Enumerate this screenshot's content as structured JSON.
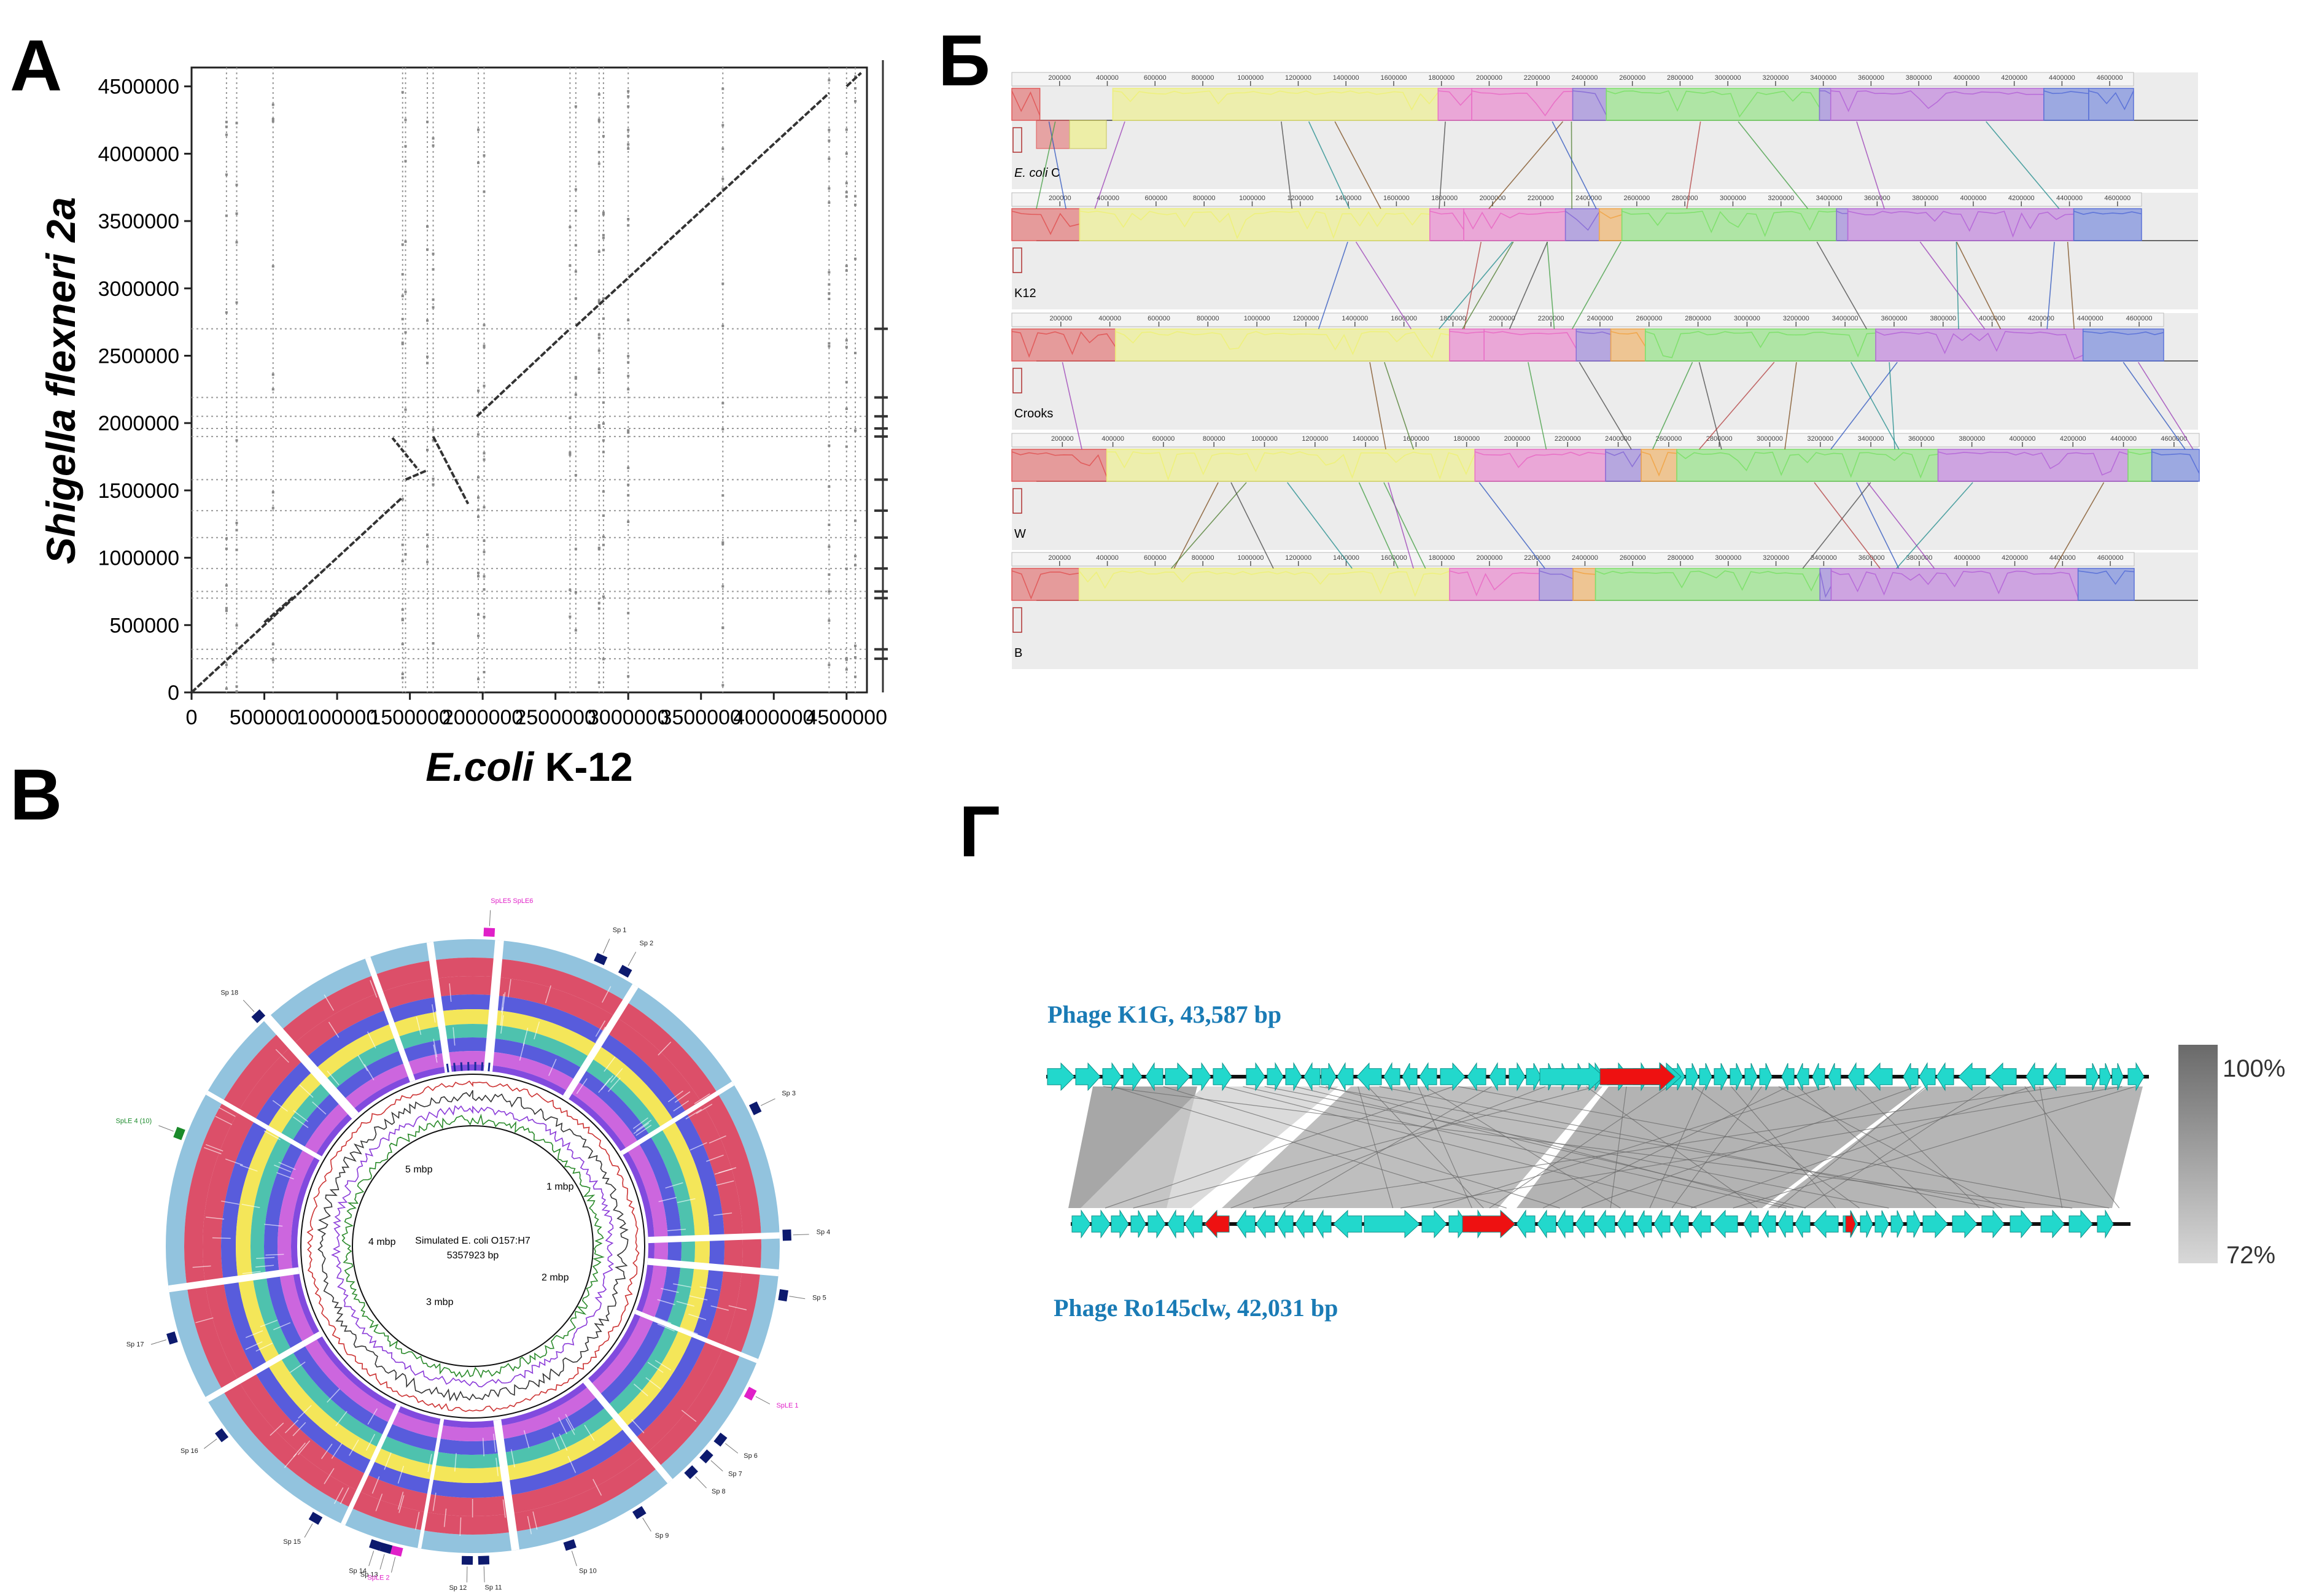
{
  "panels": {
    "a": {
      "letter": "A",
      "x_axis_label_italic": "E.coli",
      "x_axis_label_rest": " K-12",
      "y_axis_label": "Shigella flexneri 2a",
      "x_ticks": [
        "0",
        "500000",
        "1000000",
        "1500000",
        "2000000",
        "2500000",
        "3000000",
        "3500000",
        "4000000",
        "4500000"
      ],
      "y_ticks": [
        "0",
        "500000",
        "1000000",
        "1500000",
        "2000000",
        "2500000",
        "3000000",
        "3500000",
        "4000000",
        "4500000"
      ]
    },
    "b": {
      "letter": "Б",
      "genomes": [
        {
          "label": "E. coli C",
          "italic_part": "E. coli",
          "plain_part": " C"
        },
        {
          "label": "K12"
        },
        {
          "label": "Crooks"
        },
        {
          "label": "W"
        },
        {
          "label": "B"
        }
      ],
      "ruler_ticks": [
        "200000",
        "400000",
        "600000",
        "800000",
        "1000000",
        "1200000",
        "1400000",
        "1600000",
        "1800000",
        "2000000",
        "2200000",
        "2400000",
        "2600000",
        "2800000",
        "3000000",
        "3200000",
        "3400000",
        "3600000",
        "3800000",
        "4000000",
        "4200000",
        "4400000",
        "4600000"
      ],
      "block_colors": [
        "#e05a5a",
        "#eef07a",
        "#e96fc6",
        "#8a6fd6",
        "#f0a64a",
        "#7ee06b",
        "#b66ad8",
        "#5b72d8"
      ]
    },
    "c": {
      "letter": "В",
      "center_line1": "Simulated E. coli O157:H7",
      "center_line2": "5357923 bp",
      "scale_labels": {
        "m1": "1 mbp",
        "m2": "2 mbp",
        "m3": "3 mbp",
        "m4": "4 mbp",
        "m5": "5 mbp"
      },
      "ring_colors": [
        "#d6304f",
        "#3b3fd6",
        "#f2e23c",
        "#2fb7a0",
        "#c34bd8",
        "#7fb8d8"
      ],
      "outer_labels": [
        {
          "text": "Sp 1"
        },
        {
          "text": "Sp 2"
        },
        {
          "text": "Sp 3"
        },
        {
          "text": "Sp 4"
        },
        {
          "text": "Sp 5"
        },
        {
          "text": "SpLE 1"
        },
        {
          "text": "Sp 6"
        },
        {
          "text": "Sp 7"
        },
        {
          "text": "Sp 8"
        },
        {
          "text": "Sp 9"
        },
        {
          "text": "Sp 10"
        },
        {
          "text": "Sp 11"
        },
        {
          "text": "Sp 12"
        },
        {
          "text": "Sp 13"
        },
        {
          "text": "Sp 14"
        },
        {
          "text": "SpLE 2"
        },
        {
          "text": "Sp 15"
        },
        {
          "text": "Sp 16"
        },
        {
          "text": "Sp 17"
        },
        {
          "text": "SpLE 4 (10)"
        },
        {
          "text": "Sp 18"
        },
        {
          "text": "SpLE5 SpLE6"
        }
      ]
    },
    "d": {
      "letter": "Г",
      "phage1": "Phage K1G, 43,587 bp",
      "phage2": "Phage Ro145clw, 42,031 bp",
      "legend_max": "100%",
      "legend_min": "72%",
      "gene_color": "#22d8cc",
      "highlight_color": "#ee1111",
      "title_color": "#1a7bb5"
    }
  }
}
